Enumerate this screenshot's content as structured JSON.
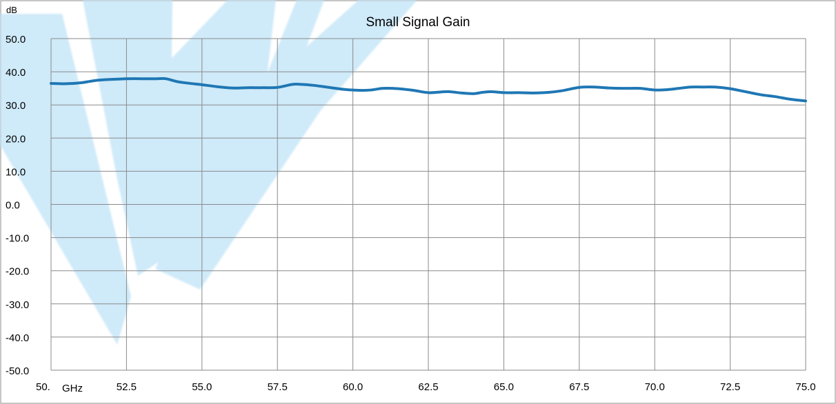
{
  "chart_data": {
    "type": "line",
    "title": "Small Signal Gain",
    "xlabel": "GHz",
    "ylabel": "dB",
    "xlim": [
      50.0,
      75.0
    ],
    "ylim": [
      -50.0,
      50.0
    ],
    "x_ticks": [
      50.0,
      52.5,
      55.0,
      57.5,
      60.0,
      62.5,
      65.0,
      67.5,
      70.0,
      72.5,
      75.0
    ],
    "x_tick_labels": [
      "50.",
      "52.5",
      "55.0",
      "57.5",
      "60.0",
      "62.5",
      "65.0",
      "67.5",
      "70.0",
      "72.5",
      "75.0"
    ],
    "y_ticks": [
      50.0,
      40.0,
      30.0,
      20.0,
      10.0,
      0.0,
      -10.0,
      -20.0,
      -30.0,
      -40.0,
      -50.0
    ],
    "y_tick_labels": [
      "50.0",
      "40.0",
      "30.0",
      "20.0",
      "10.0",
      "0.0",
      "-10.0",
      "-20.0",
      "-30.0",
      "-40.0",
      "-50.0"
    ],
    "grid": true,
    "legend": "none",
    "series": [
      {
        "color": "#1f77b4",
        "x": [
          50.0,
          50.5,
          51.0,
          51.5,
          52.0,
          52.5,
          53.0,
          53.5,
          53.8,
          54.2,
          54.6,
          55.0,
          55.5,
          56.0,
          56.5,
          57.0,
          57.5,
          58.0,
          58.3,
          58.7,
          59.2,
          59.7,
          60.2,
          60.6,
          61.0,
          61.5,
          62.0,
          62.5,
          62.9,
          63.2,
          63.6,
          64.0,
          64.3,
          64.6,
          65.0,
          65.5,
          66.0,
          66.5,
          67.0,
          67.5,
          68.0,
          68.5,
          69.0,
          69.5,
          70.0,
          70.4,
          70.8,
          71.2,
          71.6,
          72.0,
          72.5,
          73.0,
          73.5,
          74.0,
          74.5,
          75.0
        ],
        "y": [
          36.5,
          36.4,
          36.7,
          37.4,
          37.7,
          37.9,
          37.9,
          37.9,
          37.9,
          37.0,
          36.5,
          36.1,
          35.5,
          35.1,
          35.2,
          35.2,
          35.3,
          36.2,
          36.2,
          35.9,
          35.3,
          34.7,
          34.4,
          34.5,
          35.0,
          34.9,
          34.4,
          33.7,
          33.9,
          34.0,
          33.6,
          33.4,
          33.8,
          34.0,
          33.7,
          33.7,
          33.6,
          33.8,
          34.4,
          35.3,
          35.4,
          35.1,
          35.0,
          35.0,
          34.5,
          34.6,
          35.0,
          35.4,
          35.4,
          35.4,
          34.9,
          34.0,
          33.1,
          32.5,
          31.7,
          31.2
        ]
      }
    ]
  }
}
